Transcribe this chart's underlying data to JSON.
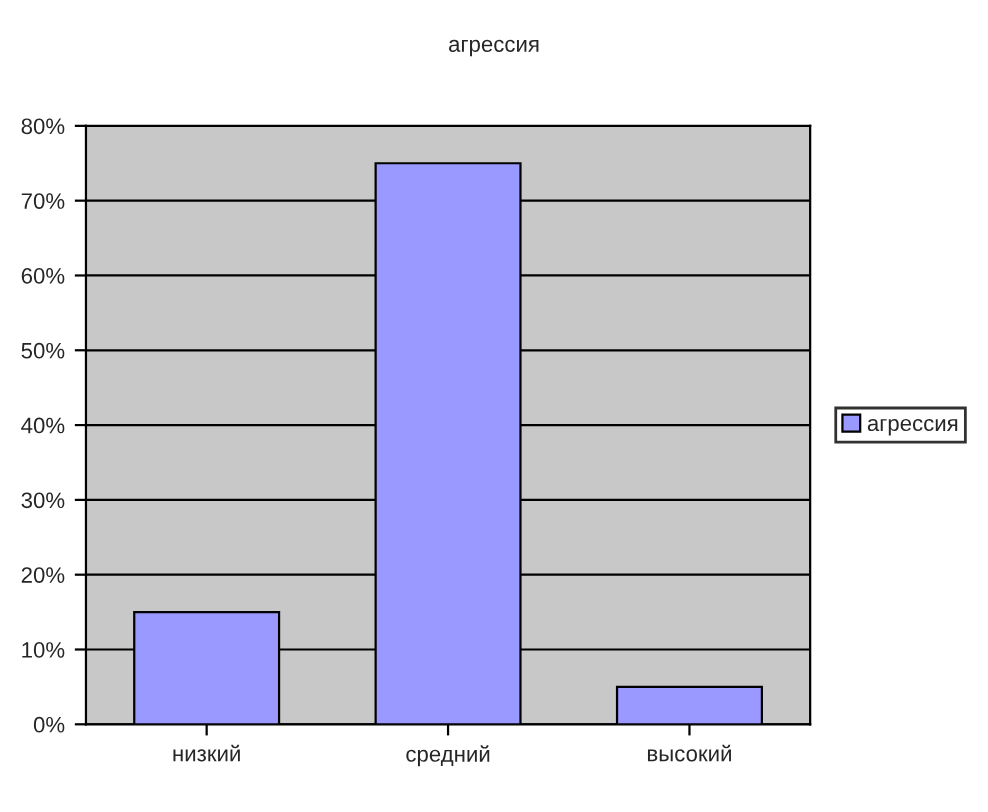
{
  "chart_data": {
    "type": "bar",
    "title": "агрессия",
    "categories": [
      "низкий",
      "средний",
      "высокий"
    ],
    "series": [
      {
        "name": "агрессия",
        "color": "#9999ff",
        "values": [
          15,
          75,
          5
        ]
      }
    ],
    "ylim": [
      0,
      80
    ],
    "yticks": [
      {
        "value": 0,
        "label": "0%"
      },
      {
        "value": 10,
        "label": "10%"
      },
      {
        "value": 20,
        "label": "20%"
      },
      {
        "value": 30,
        "label": "30%"
      },
      {
        "value": 40,
        "label": "40%"
      },
      {
        "value": 50,
        "label": "50%"
      },
      {
        "value": 60,
        "label": "60%"
      },
      {
        "value": 70,
        "label": "70%"
      },
      {
        "value": 80,
        "label": "80%"
      }
    ],
    "grid": "y",
    "legend": "right"
  }
}
